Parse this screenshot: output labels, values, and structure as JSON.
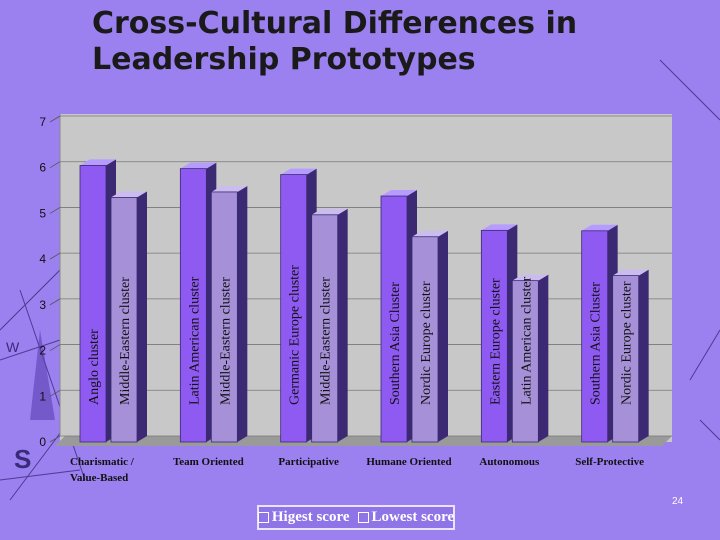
{
  "title": {
    "line1": "Cross-Cultural Differences in",
    "line2": "Leadership Prototypes"
  },
  "colors": {
    "background": "#9b80f0",
    "plot_area": "#c8c8c8",
    "highest_bar": "#8f5af2",
    "lowest_bar": "#a690d8"
  },
  "chart_data": {
    "type": "bar",
    "title": "Cross-Cultural Differences in Leadership Prototypes",
    "xlabel": "",
    "ylabel": "",
    "ylim": [
      0,
      7
    ],
    "yticks": [
      0,
      1,
      2,
      3,
      4,
      5,
      6,
      7
    ],
    "grid": true,
    "categories": [
      "Charismatic / Value-Based",
      "Team Oriented",
      "Participative",
      "Humane Oriented",
      "Autonomous",
      "Self-Protective"
    ],
    "series": [
      {
        "name": "Higest score",
        "values": [
          6.05,
          5.98,
          5.85,
          5.38,
          4.63,
          4.62
        ],
        "labels": [
          "Anglo cluster",
          "Latin American cluster",
          "Germanic Europe cluster",
          "Southern Asia Cluster",
          "Eastern Europe cluster",
          "Southern Asia Cluster"
        ]
      },
      {
        "name": "Lowest score",
        "values": [
          5.35,
          5.47,
          4.97,
          4.49,
          3.53,
          3.64
        ],
        "labels": [
          "Middle-Eastern cluster",
          "Middle-Eastern cluster",
          "Middle-Eastern cluster",
          "Nordic Europe cluster",
          "Latin American cluster",
          "Nordic Europe cluster"
        ]
      }
    ],
    "legend_position": "bottom"
  },
  "legend": {
    "high_label": "Higest score",
    "low_label": "Lowest score"
  },
  "page_number": "24",
  "decor": {
    "compass_letters": [
      "S",
      "W"
    ]
  }
}
